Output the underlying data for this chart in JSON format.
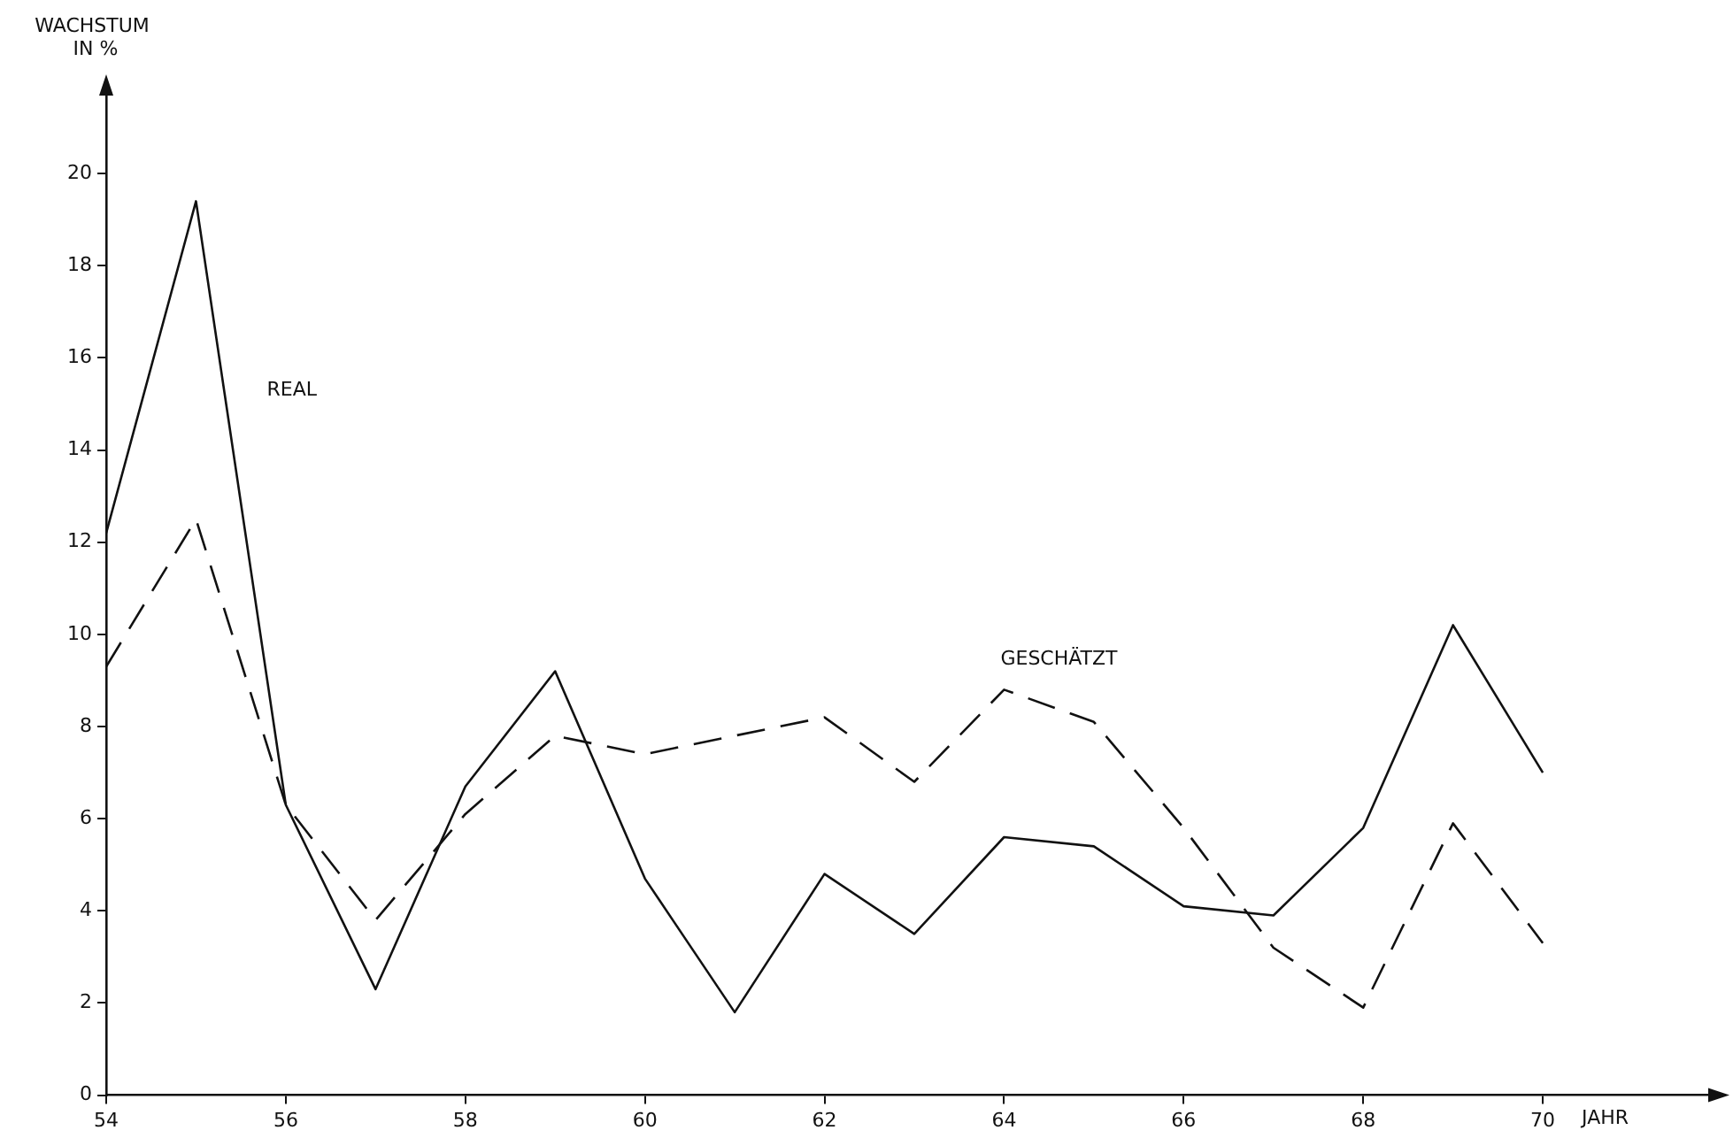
{
  "chart_data": {
    "type": "line",
    "xlabel": "JAHR",
    "ylabel": "WACHSTUM IN %",
    "x": [
      54,
      55,
      56,
      57,
      58,
      59,
      60,
      61,
      62,
      63,
      64,
      65,
      66,
      67,
      68,
      69,
      70
    ],
    "series": [
      {
        "name": "REAL",
        "color": "#111111",
        "line_style": "solid",
        "values": [
          12.2,
          19.4,
          6.3,
          2.3,
          6.7,
          9.2,
          4.7,
          1.8,
          4.8,
          3.5,
          5.6,
          5.4,
          4.1,
          3.9,
          5.8,
          10.2,
          7.0
        ]
      },
      {
        "name": "GESCHÄTZT",
        "color": "#111111",
        "line_style": "dashed",
        "values": [
          9.3,
          12.5,
          6.3,
          3.8,
          6.1,
          7.8,
          7.4,
          7.8,
          8.2,
          6.8,
          8.8,
          8.1,
          5.8,
          3.2,
          1.9,
          5.9,
          3.3
        ]
      }
    ],
    "xlim": [
      54,
      72
    ],
    "xticks": [
      54,
      56,
      58,
      60,
      62,
      64,
      66,
      68,
      70
    ],
    "ylim": [
      0,
      22
    ],
    "yticks": [
      0,
      2,
      4,
      6,
      8,
      10,
      12,
      14,
      16,
      18,
      20
    ],
    "grid": false,
    "legend": false,
    "marker": "none"
  }
}
